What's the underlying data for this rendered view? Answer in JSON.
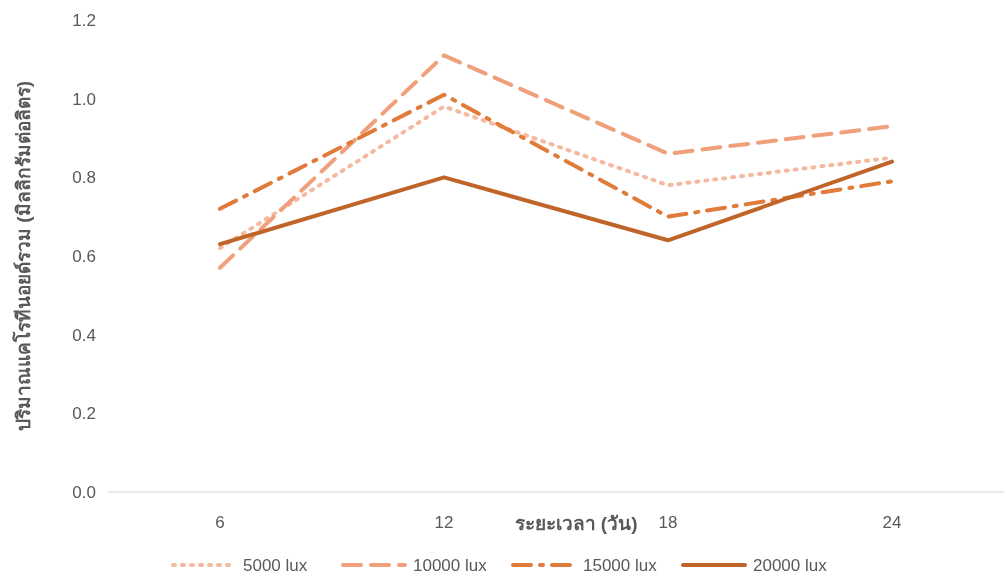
{
  "chart_data": {
    "type": "line",
    "xlabel": "ระยะเวลา (วัน)",
    "ylabel": "ปริมาณแคโรทีนอยด์รวม (มิลลิกรัมต่อลิตร)",
    "categories": [
      "6",
      "12",
      "18",
      "24"
    ],
    "ylim": [
      0,
      1.2
    ],
    "yticks": [
      {
        "value": 0,
        "label": "0.0"
      },
      0.2,
      0.4,
      0.6,
      0.8,
      {
        "value": 1,
        "label": "1.0"
      },
      1.2
    ],
    "grid": false,
    "legend": "bottom",
    "marker": "none",
    "series": [
      {
        "name": "5000 lux",
        "color": "#f4b9a0",
        "line_style": "dotted",
        "values": [
          0.62,
          0.98,
          0.78,
          0.85
        ]
      },
      {
        "name": "10000 lux",
        "color": "#f0a07a",
        "line_style": "dashed",
        "values": [
          0.57,
          1.11,
          0.86,
          0.93
        ]
      },
      {
        "name": "15000 lux",
        "color": "#e07b39",
        "line_style": "dashdot",
        "values": [
          0.72,
          1.01,
          0.7,
          0.79
        ]
      },
      {
        "name": "20000 lux",
        "color": "#c0652a",
        "line_style": "solid",
        "values": [
          0.63,
          0.8,
          0.64,
          0.84
        ]
      }
    ]
  }
}
